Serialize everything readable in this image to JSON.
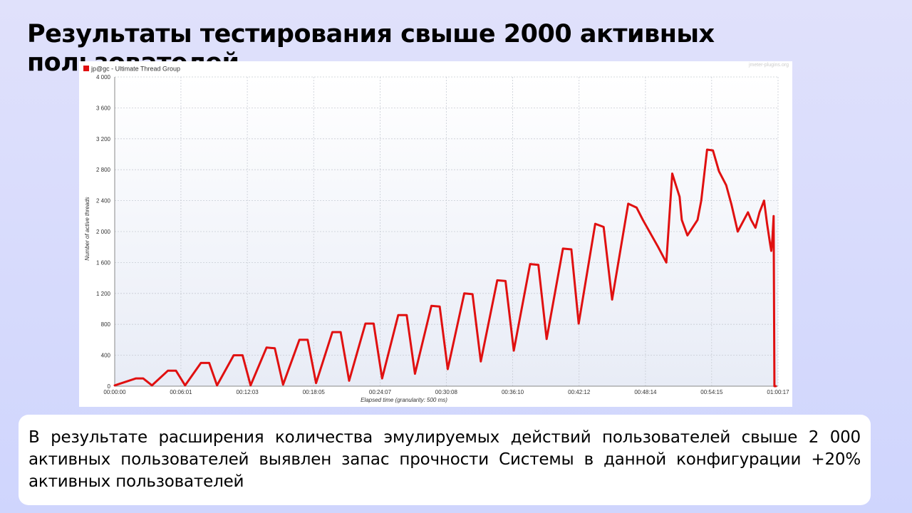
{
  "slide": {
    "title": "Результаты тестирования свыше 2000 активных пользователей",
    "description": "В результате расширения количества эмулируемых действий пользователей свыше 2 000 активных пользователей выявлен запас прочности Системы в данной конфигурации +20% активных пользователей"
  },
  "chart_data": {
    "type": "line",
    "title": "",
    "watermark": "jmeter-plugins.org",
    "legend": {
      "position": "top-left",
      "entries": [
        "jp@gc - Ultimate Thread Group"
      ]
    },
    "xlabel": "Elapsed time (granularity: 500 ms)",
    "ylabel": "Number of active threads",
    "xlim": [
      0,
      3617
    ],
    "ylim": [
      0,
      4000
    ],
    "grid": true,
    "x_tick_labels": [
      "00:00:00",
      "00:06:01",
      "00:12:03",
      "00:18:05",
      "00:24:07",
      "00:30:08",
      "00:36:10",
      "00:42:12",
      "00:48:14",
      "00:54:15",
      "01:00:17"
    ],
    "x_tick_seconds": [
      0,
      361,
      723,
      1085,
      1447,
      1808,
      2170,
      2532,
      2894,
      3255,
      3617
    ],
    "y_ticks": [
      0,
      400,
      800,
      1200,
      1600,
      2000,
      2400,
      2800,
      3200,
      3600,
      4000
    ],
    "y_tick_labels": [
      "0",
      "400",
      "800",
      "1 200",
      "1 600",
      "2 000",
      "2 400",
      "2 800",
      "3 200",
      "3 600",
      "4 000"
    ],
    "series": [
      {
        "name": "jp@gc - Ultimate Thread Group",
        "color": "#e01010",
        "x": [
          0,
          116,
          155,
          203,
          290,
          334,
          384,
          470,
          515,
          558,
          649,
          697,
          741,
          828,
          873,
          918,
          1007,
          1052,
          1098,
          1187,
          1232,
          1278,
          1367,
          1412,
          1458,
          1546,
          1592,
          1637,
          1727,
          1772,
          1816,
          1906,
          1951,
          1996,
          2086,
          2131,
          2176,
          2265,
          2310,
          2355,
          2444,
          2490,
          2530,
          2620,
          2666,
          2712,
          2800,
          2846,
          2880,
          2963,
          3008,
          3040,
          3080,
          3092,
          3123,
          3178,
          3198,
          3230,
          3262,
          3295,
          3334,
          3363,
          3397,
          3453,
          3470,
          3494,
          3516,
          3541,
          3557,
          3573,
          3580,
          3586,
          3593,
          3597,
          3603,
          3605
        ],
        "y": [
          10,
          100,
          100,
          10,
          200,
          200,
          10,
          300,
          300,
          10,
          400,
          400,
          10,
          500,
          490,
          20,
          600,
          600,
          40,
          700,
          700,
          70,
          810,
          810,
          100,
          920,
          920,
          160,
          1040,
          1030,
          220,
          1200,
          1190,
          320,
          1370,
          1360,
          460,
          1580,
          1570,
          610,
          1780,
          1770,
          810,
          2100,
          2060,
          1120,
          2360,
          2310,
          2150,
          1800,
          1600,
          2750,
          2450,
          2150,
          1950,
          2150,
          2400,
          3060,
          3050,
          2780,
          2600,
          2350,
          2000,
          2250,
          2150,
          2050,
          2250,
          2400,
          2100,
          1850,
          1750,
          1900,
          2200,
          0,
          0,
          0
        ]
      }
    ]
  }
}
